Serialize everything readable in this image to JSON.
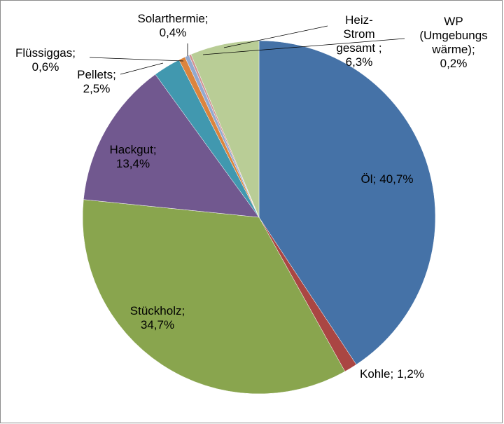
{
  "chart_data": {
    "type": "pie",
    "categories": [
      "Öl;",
      "Kohle;",
      "Stückholz;",
      "Hackgut;",
      "Pellets;",
      "Flüssiggas;",
      "Solarthermie;",
      "WP\n(Umgebungs\nwärme);",
      "Heiz-\nStrom\ngesamt ;"
    ],
    "values": [
      40.7,
      1.2,
      34.7,
      13.4,
      2.5,
      0.6,
      0.4,
      0.2,
      6.3
    ],
    "value_labels": [
      "40,7%",
      "1,2%",
      "34,7%",
      "13,4%",
      "2,5%",
      "0,6%",
      "0,4%",
      "0,2%",
      "6,3%"
    ],
    "colors": [
      "#4572a7",
      "#aa4643",
      "#89a54e",
      "#71588f",
      "#4198af",
      "#db843d",
      "#93a9cf",
      "#d19392",
      "#b9cd96"
    ]
  }
}
